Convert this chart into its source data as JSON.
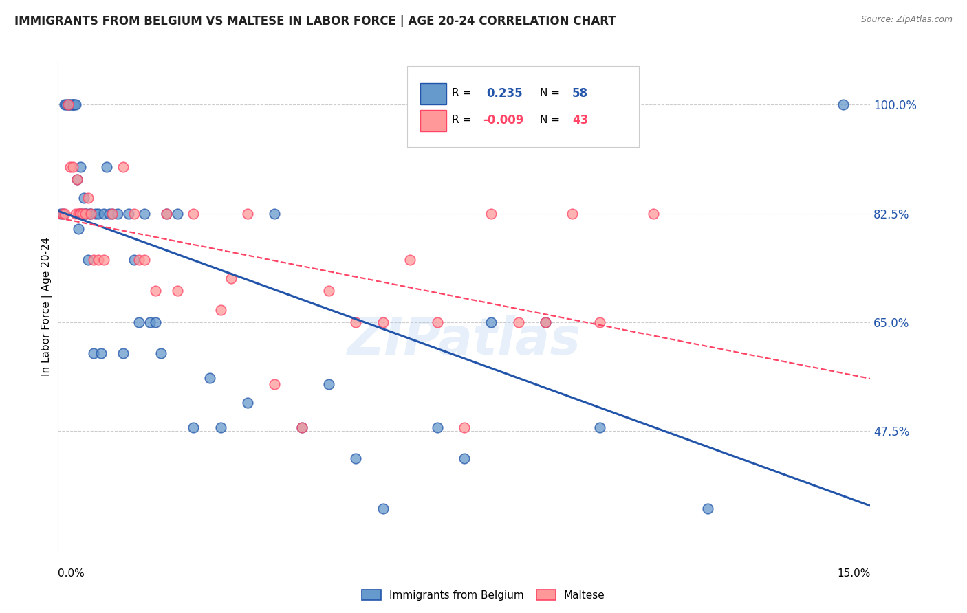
{
  "title": "IMMIGRANTS FROM BELGIUM VS MALTESE IN LABOR FORCE | AGE 20-24 CORRELATION CHART",
  "source": "Source: ZipAtlas.com",
  "ylabel": "In Labor Force | Age 20-24",
  "yticks": [
    47.5,
    65.0,
    82.5,
    100.0
  ],
  "ytick_labels": [
    "47.5%",
    "65.0%",
    "82.5%",
    "100.0%"
  ],
  "xmin": 0.0,
  "xmax": 15.0,
  "ymin": 28.0,
  "ymax": 107.0,
  "legend1_R": "0.235",
  "legend1_N": "58",
  "legend2_R": "-0.009",
  "legend2_N": "43",
  "legend1_label": "Immigrants from Belgium",
  "legend2_label": "Maltese",
  "blue_color": "#6699CC",
  "pink_color": "#FF9999",
  "blue_line_color": "#2255AA",
  "pink_line_color": "#FF4466",
  "watermark": "ZIPatlas",
  "blue_x": [
    0.05,
    0.1,
    0.12,
    0.15,
    0.18,
    0.2,
    0.22,
    0.25,
    0.27,
    0.28,
    0.3,
    0.32,
    0.35,
    0.38,
    0.4,
    0.42,
    0.45,
    0.48,
    0.5,
    0.52,
    0.55,
    0.58,
    0.6,
    0.65,
    0.7,
    0.75,
    0.8,
    0.85,
    0.9,
    0.95,
    1.0,
    1.1,
    1.2,
    1.3,
    1.4,
    1.5,
    1.6,
    1.7,
    1.8,
    1.9,
    2.0,
    2.2,
    2.5,
    2.8,
    3.0,
    3.5,
    4.0,
    4.5,
    5.0,
    5.5,
    6.0,
    7.0,
    7.5,
    8.0,
    9.0,
    10.0,
    12.0,
    14.5
  ],
  "blue_y": [
    82.5,
    82.5,
    100.0,
    100.0,
    100.0,
    100.0,
    100.0,
    100.0,
    100.0,
    100.0,
    100.0,
    100.0,
    88.0,
    80.0,
    82.5,
    90.0,
    82.5,
    85.0,
    82.5,
    82.5,
    75.0,
    82.5,
    82.5,
    60.0,
    82.5,
    82.5,
    60.0,
    82.5,
    90.0,
    82.5,
    82.5,
    82.5,
    60.0,
    82.5,
    75.0,
    65.0,
    82.5,
    65.0,
    65.0,
    60.0,
    82.5,
    82.5,
    48.0,
    56.0,
    48.0,
    52.0,
    82.5,
    48.0,
    55.0,
    43.0,
    35.0,
    48.0,
    43.0,
    65.0,
    65.0,
    48.0,
    35.0,
    100.0
  ],
  "pink_x": [
    0.08,
    0.12,
    0.18,
    0.22,
    0.28,
    0.32,
    0.35,
    0.38,
    0.4,
    0.42,
    0.45,
    0.5,
    0.55,
    0.6,
    0.65,
    0.75,
    0.85,
    1.0,
    1.2,
    1.4,
    1.5,
    1.6,
    1.8,
    2.0,
    2.2,
    2.5,
    3.0,
    3.2,
    3.5,
    4.0,
    4.5,
    5.0,
    5.5,
    6.0,
    6.5,
    7.0,
    7.5,
    8.0,
    8.5,
    9.0,
    9.5,
    10.0,
    11.0
  ],
  "pink_y": [
    82.5,
    82.5,
    100.0,
    90.0,
    90.0,
    82.5,
    88.0,
    82.5,
    82.5,
    82.5,
    82.5,
    82.5,
    85.0,
    82.5,
    75.0,
    75.0,
    75.0,
    82.5,
    90.0,
    82.5,
    75.0,
    75.0,
    70.0,
    82.5,
    70.0,
    82.5,
    67.0,
    72.0,
    82.5,
    55.0,
    48.0,
    70.0,
    65.0,
    65.0,
    75.0,
    65.0,
    48.0,
    82.5,
    65.0,
    65.0,
    82.5,
    65.0,
    82.5
  ]
}
